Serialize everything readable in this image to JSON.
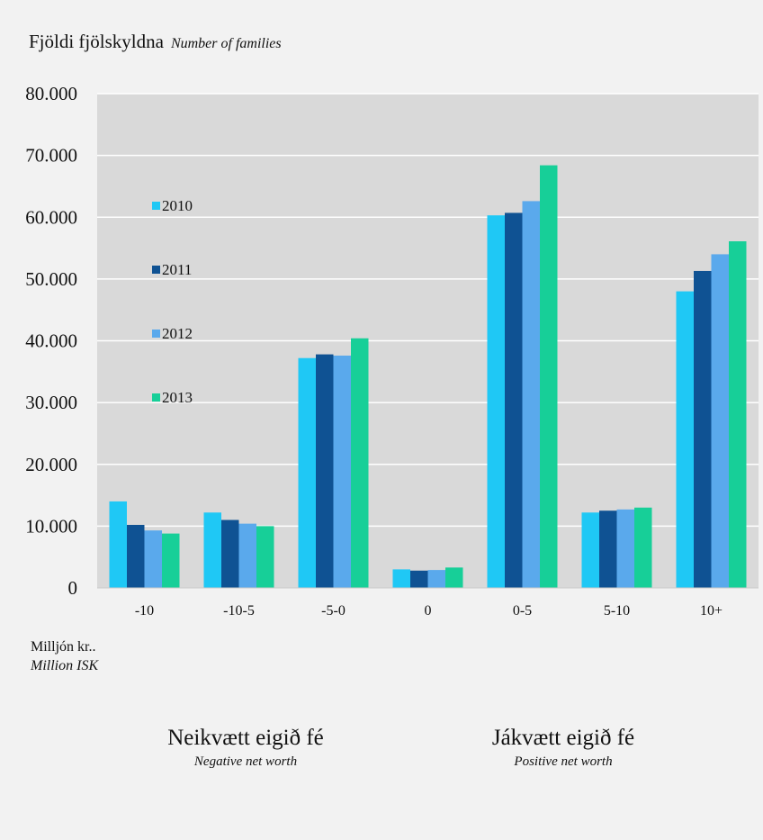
{
  "header": {
    "title_is": "Fjöldi fjölskyldna",
    "title_en": "Number of families"
  },
  "unit": {
    "is": "Milljón kr..",
    "en": "Million ISK"
  },
  "groups": {
    "negative": {
      "is": "Neikvætt eigið fé",
      "en": "Negative net worth"
    },
    "positive": {
      "is": "Jákvætt eigið fé",
      "en": "Positive net worth"
    }
  },
  "chart_data": {
    "type": "bar",
    "categories": [
      "-10",
      "-10-5",
      "-5-0",
      "0",
      "0-5",
      "5-10",
      "10+"
    ],
    "series": [
      {
        "name": "2010",
        "color": "#1fc8f5",
        "values": [
          14000,
          12200,
          37200,
          3000,
          60300,
          12200,
          48000
        ]
      },
      {
        "name": "2011",
        "color": "#0f5293",
        "values": [
          10200,
          11000,
          37800,
          2800,
          60700,
          12500,
          51300
        ]
      },
      {
        "name": "2012",
        "color": "#5aa9ec",
        "values": [
          9300,
          10400,
          37600,
          2900,
          62600,
          12700,
          54000
        ]
      },
      {
        "name": "2013",
        "color": "#17cf98",
        "values": [
          8800,
          10000,
          40400,
          3300,
          68400,
          13000,
          56100
        ]
      }
    ],
    "ylim": [
      0,
      80000
    ],
    "yticks": [
      0,
      10000,
      20000,
      30000,
      40000,
      50000,
      60000,
      70000,
      80000
    ],
    "ytick_labels": [
      "0",
      "10.000",
      "20.000",
      "30.000",
      "40.000",
      "50.000",
      "60.000",
      "70.000",
      "80.000"
    ],
    "grid": true,
    "legend_position": "left, inside plot"
  }
}
